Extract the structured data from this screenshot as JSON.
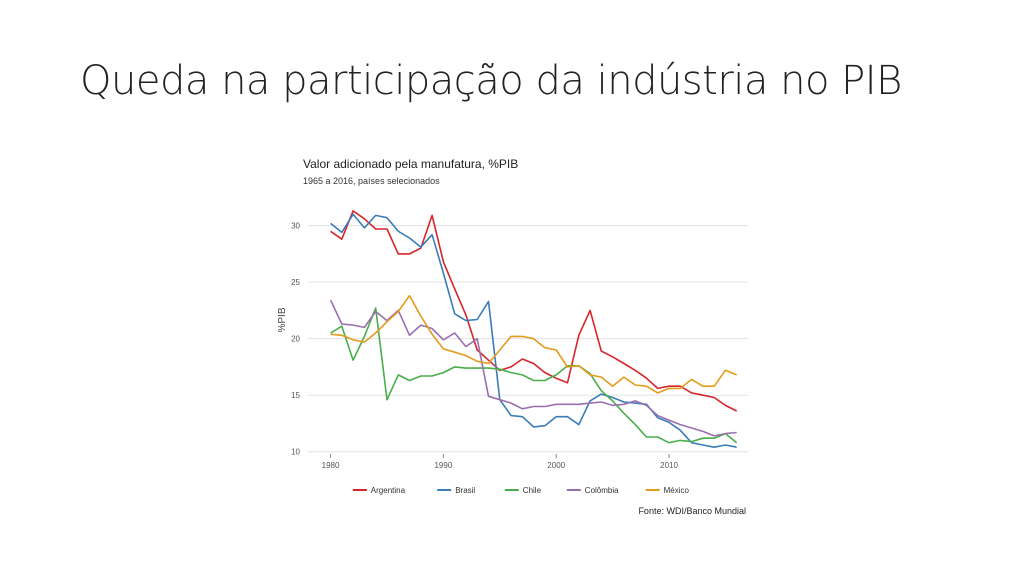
{
  "slide": {
    "title": "Queda na participação da indústria no PIB"
  },
  "chart_data": {
    "type": "line",
    "title": "Valor adicionado pela manufatura, %PIB",
    "subtitle": "1965 a 2016, países selecionados",
    "ylabel": "%PIB",
    "xlabel": "",
    "xlim": [
      1978,
      2017
    ],
    "ylim": [
      9.8,
      32
    ],
    "xticks": [
      1980,
      1990,
      2000,
      2010
    ],
    "yticks": [
      10,
      15,
      20,
      25,
      30
    ],
    "grid": true,
    "legend": "bottom",
    "source": "Fonte: WDI/Banco Mundial",
    "x": [
      1980,
      1981,
      1982,
      1983,
      1984,
      1985,
      1986,
      1987,
      1988,
      1989,
      1990,
      1991,
      1992,
      1993,
      1994,
      1995,
      1996,
      1997,
      1998,
      1999,
      2000,
      2001,
      2002,
      2003,
      2004,
      2005,
      2006,
      2007,
      2008,
      2009,
      2010,
      2011,
      2012,
      2013,
      2014,
      2015,
      2016
    ],
    "series": [
      {
        "name": "Argentina",
        "color": "#d7252b",
        "values": [
          29.5,
          28.8,
          31.3,
          30.6,
          29.7,
          29.7,
          27.5,
          27.5,
          28.0,
          30.9,
          26.8,
          24.4,
          22.1,
          19.0,
          18.1,
          17.2,
          17.5,
          18.2,
          17.8,
          17.0,
          16.5,
          16.1,
          20.3,
          22.5,
          18.9,
          18.4,
          17.8,
          17.2,
          16.5,
          15.6,
          15.8,
          15.8,
          15.2,
          15.0,
          14.8,
          14.1,
          13.6
        ]
      },
      {
        "name": "Brasil",
        "color": "#3a7db8",
        "values": [
          30.2,
          29.4,
          31.0,
          29.8,
          30.9,
          30.7,
          29.5,
          28.9,
          28.1,
          29.2,
          25.8,
          22.2,
          21.6,
          21.7,
          23.3,
          14.6,
          13.2,
          13.1,
          12.2,
          12.3,
          13.1,
          13.1,
          12.4,
          14.5,
          15.1,
          14.8,
          14.4,
          14.3,
          14.2,
          13.0,
          12.6,
          11.9,
          10.8,
          10.6,
          10.4,
          10.6,
          10.4
        ]
      },
      {
        "name": "Chile",
        "color": "#4aae4a",
        "values": [
          20.5,
          21.1,
          18.1,
          20.2,
          22.7,
          14.6,
          16.8,
          16.3,
          16.7,
          16.7,
          17.0,
          17.5,
          17.4,
          17.4,
          17.4,
          17.3,
          17.0,
          16.8,
          16.3,
          16.3,
          16.8,
          17.6,
          17.6,
          16.9,
          15.4,
          14.5,
          13.4,
          12.4,
          11.3,
          11.3,
          10.8,
          11.0,
          10.9,
          11.2,
          11.2,
          11.6,
          10.8
        ]
      },
      {
        "name": "Colômbia",
        "color": "#9a6fb0",
        "values": [
          23.4,
          21.3,
          21.2,
          21.0,
          22.4,
          21.6,
          22.5,
          20.3,
          21.2,
          20.9,
          19.9,
          20.5,
          19.3,
          20.0,
          14.9,
          14.6,
          14.3,
          13.8,
          14.0,
          14.0,
          14.2,
          14.2,
          14.2,
          14.3,
          14.4,
          14.1,
          14.2,
          14.5,
          14.1,
          13.2,
          12.8,
          12.4,
          12.1,
          11.8,
          11.4,
          11.6,
          11.7
        ]
      },
      {
        "name": "México",
        "color": "#e39b1c",
        "values": [
          20.4,
          20.3,
          19.9,
          19.7,
          20.5,
          21.5,
          22.4,
          23.8,
          22.0,
          20.4,
          19.1,
          18.8,
          18.5,
          18.0,
          17.8,
          19.0,
          20.2,
          20.2,
          20.0,
          19.2,
          19.0,
          17.5,
          17.6,
          16.8,
          16.6,
          15.8,
          16.6,
          15.9,
          15.8,
          15.2,
          15.6,
          15.6,
          16.4,
          15.8,
          15.8,
          17.2,
          16.8
        ]
      }
    ]
  }
}
